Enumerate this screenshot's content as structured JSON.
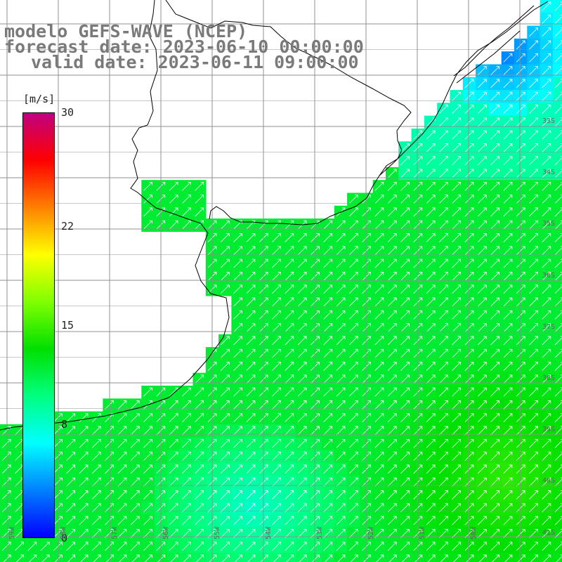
{
  "title": {
    "line1": "modelo GEFS-WAVE (NCEP)",
    "line2": "forecast date: 2023-06-10 00:00:00",
    "line3": "valid date: 2023-06-11 09:00:00"
  },
  "legend": {
    "units": "[m/s]",
    "ticks": [
      {
        "value": 30,
        "label": "30"
      },
      {
        "value": 22,
        "label": "22"
      },
      {
        "value": 15,
        "label": "15"
      },
      {
        "value": 8,
        "label": "8"
      },
      {
        "value": 0,
        "label": "0"
      }
    ],
    "min": 0,
    "max": 30,
    "colors": [
      "#0000ff",
      "#0080ff",
      "#00ffff",
      "#00ff80",
      "#00e000",
      "#80ff00",
      "#ffff00",
      "#ff8000",
      "#ff0000",
      "#c00080"
    ]
  },
  "lat_labels": [
    "33S",
    "34S",
    "35S",
    "36S",
    "37S",
    "38S",
    "39S",
    "40S",
    "41S"
  ],
  "lon_labels": [
    "59W",
    "58W",
    "57W",
    "56W",
    "55W",
    "54W",
    "53W",
    "52W",
    "51W",
    "50W"
  ],
  "map": {
    "land_color": "#ffffff",
    "grid_color": "#909090",
    "arrow_color": "#ffffff",
    "coast_color": "#000000"
  }
}
